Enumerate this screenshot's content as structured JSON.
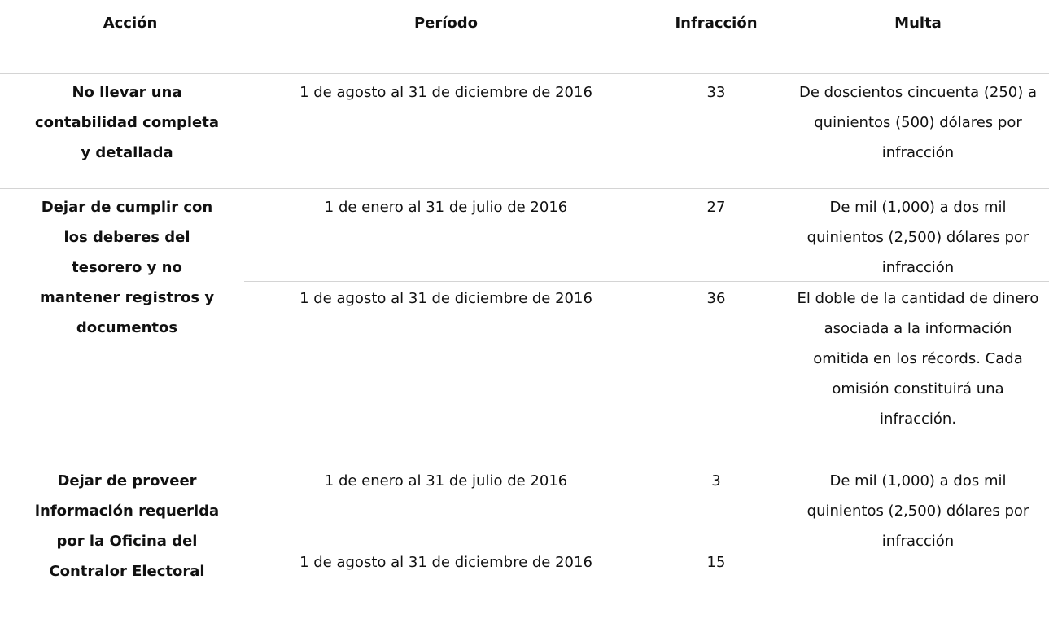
{
  "table": {
    "header": [
      "Acción",
      "Período",
      "Infracción",
      "Multa"
    ],
    "groups": [
      {
        "accion": "No llevar una contabilidad completa y detallada",
        "entries": [
          {
            "periodo": "1 de agosto al 31 de diciembre de 2016",
            "infraccion": 33,
            "multa": "De doscientos cincuenta (250) a quinientos (500) dólares por infracción"
          }
        ]
      },
      {
        "accion": "Dejar de cumplir con los deberes del tesorero y no mantener registros y documentos",
        "entries": [
          {
            "periodo": "1 de enero al 31 de julio de 2016",
            "infraccion": 27,
            "multa": "De mil (1,000) a dos mil quinientos (2,500) dólares por infracción"
          },
          {
            "periodo": "1 de agosto al 31 de diciembre de 2016",
            "infraccion": 36,
            "multa": "El doble de la cantidad de dinero asociada a la información omitida en los récords.  Cada omisión constituirá una infracción."
          }
        ]
      },
      {
        "accion": "Dejar de proveer información requerida por la Oficina del Contralor Electoral",
        "entries": [
          {
            "periodo": "1 de enero al 31 de julio de 2016",
            "infraccion": 3,
            "multa": "De mil (1,000) a dos mil quinientos (2,500) dólares por infracción"
          },
          {
            "periodo": "1 de agosto al 31 de diciembre de 2016",
            "infraccion": 15
          }
        ]
      }
    ]
  }
}
